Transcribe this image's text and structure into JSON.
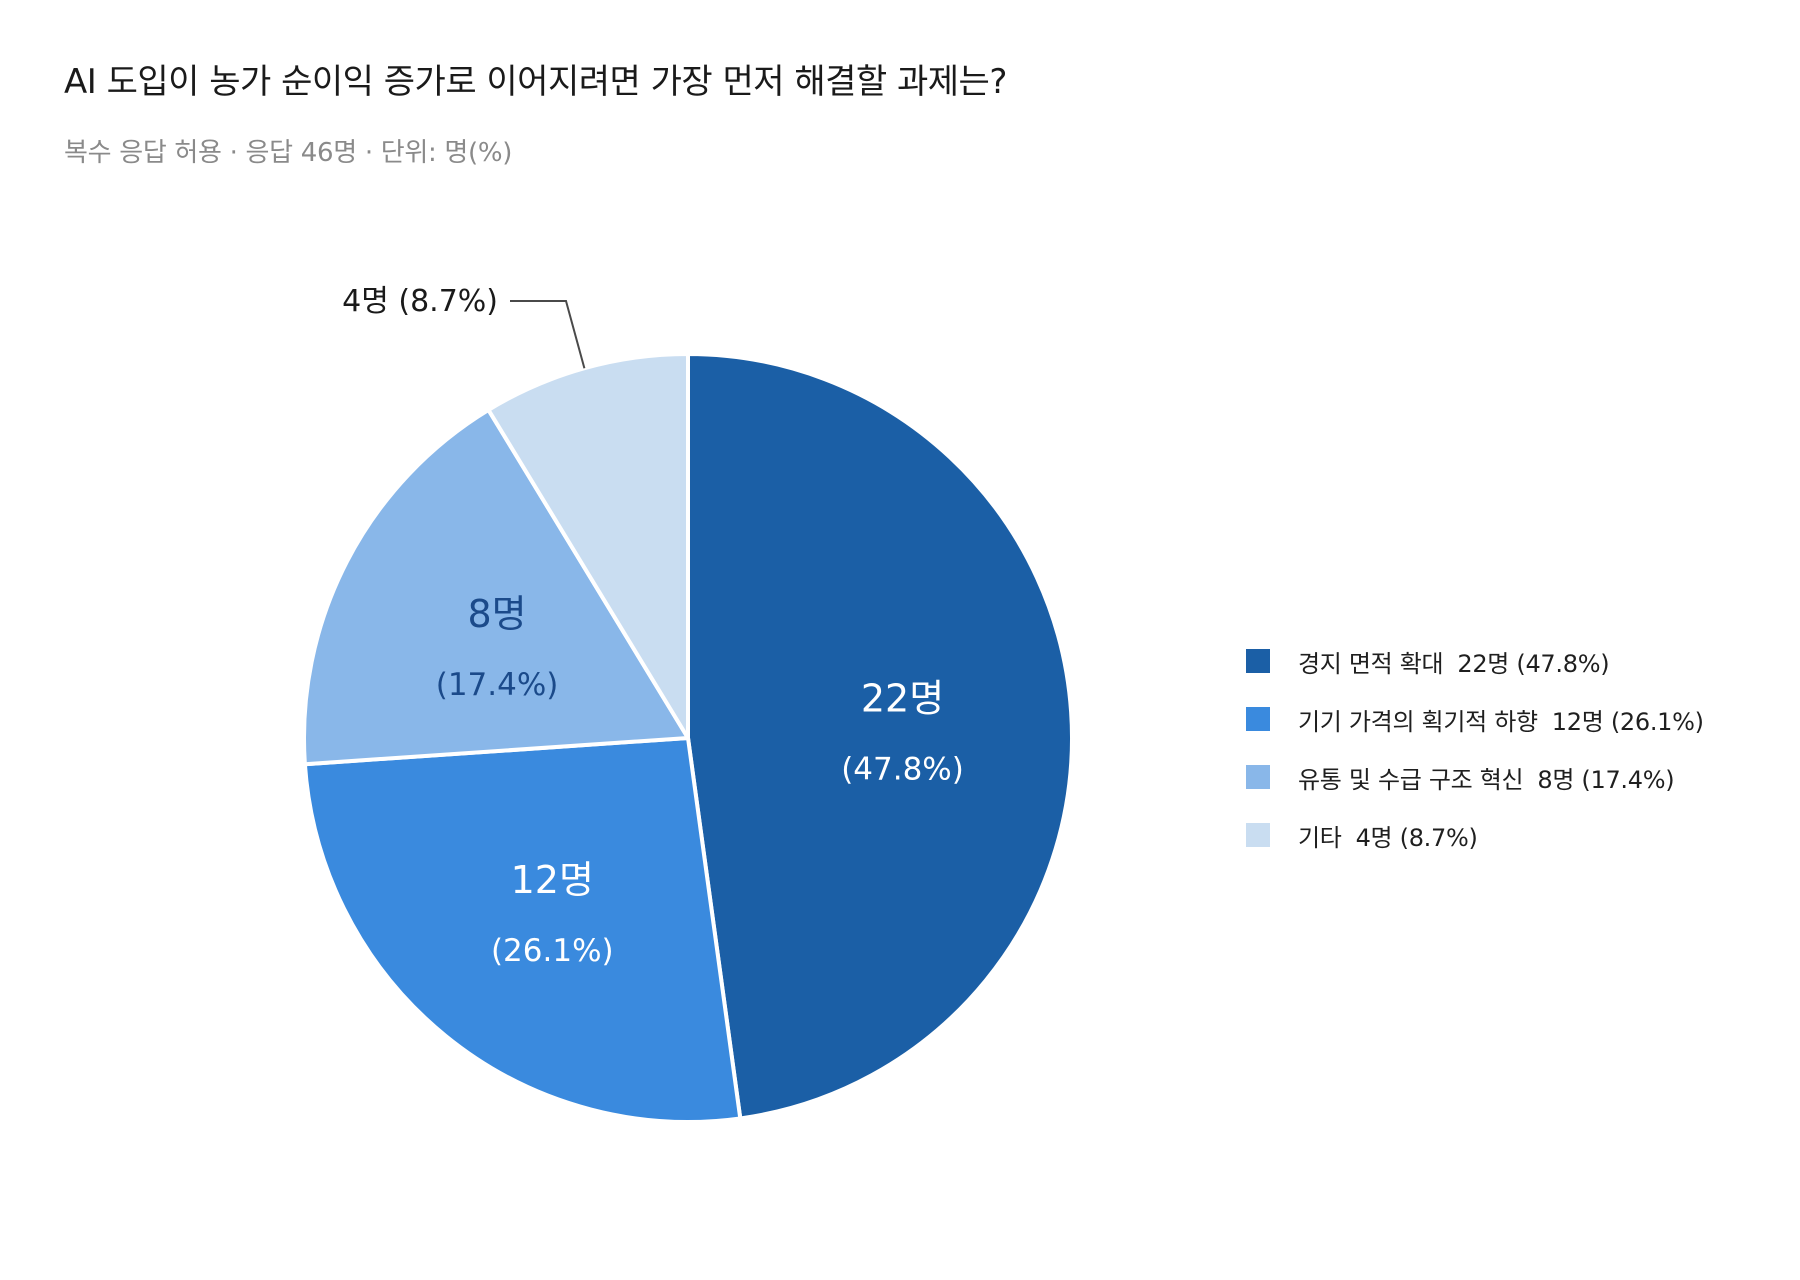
{
  "title": "AI 도입이 농가 순이익 증가로 이어지려면 가장 먼저 해결할 과제는?",
  "subtitle": "복수 응답 허용 · 응답 46명 · 단위: 명(%)",
  "chart_data": {
    "type": "pie",
    "title": "AI 도입이 농가 순이익 증가로 이어지려면 가장 먼저 해결할 과제는?",
    "subtitle": "복수 응답 허용 · 응답 46명 · 단위: 명(%)",
    "legend_position": "right",
    "start_angle_deg": 0,
    "direction": "clockwise",
    "slices": [
      {
        "label": "경지 면적 확대",
        "value": 22,
        "percent": 47.8,
        "count_label": "22명",
        "percent_label": "(47.8%)",
        "legend_value": "22명 (47.8%)",
        "color": "#1b5fa6",
        "text_color": "#ffffff",
        "label_style": "inside"
      },
      {
        "label": "기기 가격의 획기적 하향",
        "value": 12,
        "percent": 26.1,
        "count_label": "12명",
        "percent_label": "(26.1%)",
        "legend_value": "12명 (26.1%)",
        "color": "#3a8ade",
        "text_color": "#ffffff",
        "label_style": "inside"
      },
      {
        "label": "유통 및 수급 구조 혁신",
        "value": 8,
        "percent": 17.4,
        "count_label": "8명",
        "percent_label": "(17.4%)",
        "legend_value": "8명 (17.4%)",
        "color": "#89b7e9",
        "text_color": "#1b4a8a",
        "label_style": "inside"
      },
      {
        "label": "기타",
        "value": 4,
        "percent": 8.7,
        "count_label": "4명",
        "percent_label": "(8.7%)",
        "legend_value": "4명 (8.7%)",
        "color": "#c9ddf1",
        "text_color": "#1a1a1a",
        "label_style": "callout"
      }
    ]
  }
}
